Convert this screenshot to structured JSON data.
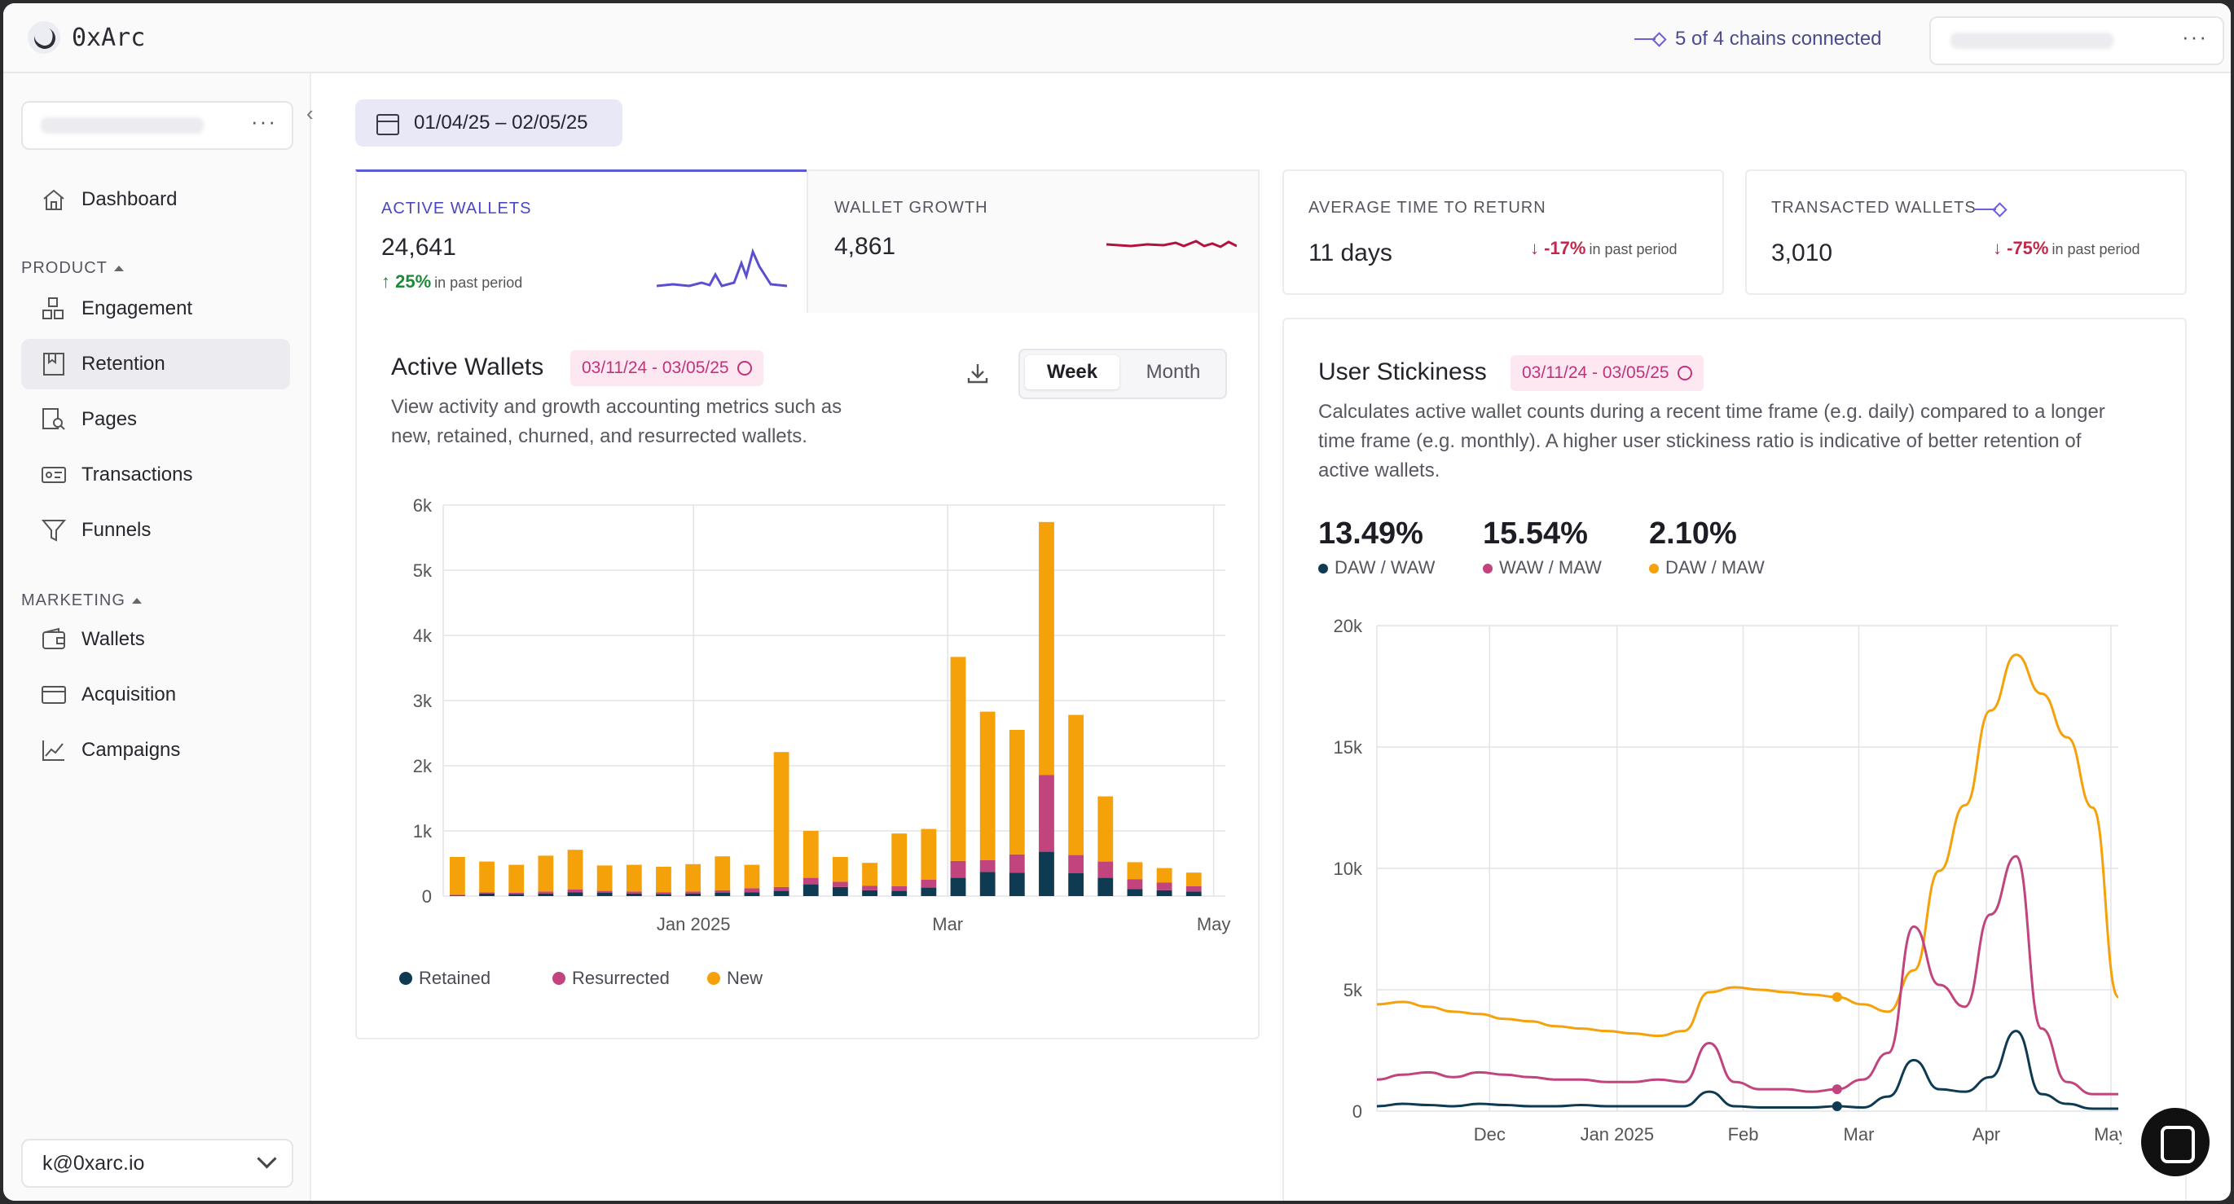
{
  "app": {
    "logo_text": "0xArc",
    "chains_status": "5 of 4 chains connected"
  },
  "sidebar": {
    "items": [
      {
        "label": "Dashboard",
        "icon": "home-icon"
      },
      {
        "label": "Engagement",
        "icon": "grid-icon"
      },
      {
        "label": "Retention",
        "icon": "bookmark-icon"
      },
      {
        "label": "Pages",
        "icon": "page-search-icon"
      },
      {
        "label": "Transactions",
        "icon": "id-card-icon"
      },
      {
        "label": "Funnels",
        "icon": "funnel-icon"
      },
      {
        "label": "Wallets",
        "icon": "wallet-icon"
      },
      {
        "label": "Acquisition",
        "icon": "card-icon"
      },
      {
        "label": "Campaigns",
        "icon": "line-chart-icon"
      }
    ],
    "sections": {
      "product": "PRODUCT",
      "marketing": "MARKETING"
    },
    "user_email": "k@0xarc.io"
  },
  "date_range": "01/04/25 – 02/05/25",
  "kpis": {
    "active_wallets": {
      "label": "ACTIVE WALLETS",
      "value": "24,641",
      "delta": "25%",
      "delta_suffix": "in past period"
    },
    "wallet_growth": {
      "label": "WALLET GROWTH",
      "value": "4,861"
    },
    "avg_time_to_return": {
      "label": "AVERAGE TIME TO RETURN",
      "value": "11 days",
      "delta": "-17%",
      "delta_suffix": "in past period"
    },
    "transacted_wallets": {
      "label": "TRANSACTED WALLETS",
      "value": "3,010",
      "delta": "-75%",
      "delta_suffix": "in past period"
    }
  },
  "active_wallets_card": {
    "title": "Active Wallets",
    "range": "03/11/24 - 03/05/25",
    "description_line1": "View activity and growth accounting metrics such as",
    "description_line2": "new, retained, churned, and resurrected wallets.",
    "toggle": {
      "week": "Week",
      "month": "Month",
      "selected": "Week"
    },
    "legend": {
      "retained": "Retained",
      "resurrected": "Resurrected",
      "new": "New"
    }
  },
  "stickiness_card": {
    "title": "User Stickiness",
    "range": "03/11/24 - 03/05/25",
    "description_line1": "Calculates active wallet counts during a recent time frame (e.g. daily) compared to a longer",
    "description_line2": "time frame (e.g. monthly). A higher user stickiness ratio is indicative of better retention of",
    "description_line3": "active wallets.",
    "stats": [
      {
        "value": "13.49%",
        "label": "DAW / WAW",
        "color": "#0e3a52"
      },
      {
        "value": "15.54%",
        "label": "WAW / MAW",
        "color": "#c1447e"
      },
      {
        "value": "2.10%",
        "label": "DAW / MAW",
        "color": "#f5a10a"
      }
    ]
  },
  "colors": {
    "retained": "#0e3a52",
    "resurrected": "#c1447e",
    "new": "#f5a10a",
    "accent": "#5b5bd6"
  },
  "chart_data": [
    {
      "type": "bar",
      "stacked": true,
      "title": "Active Wallets",
      "x_tick_labels": [
        "Jan 2025",
        "Mar",
        "May"
      ],
      "y_tick_labels": [
        "0",
        "1k",
        "2k",
        "3k",
        "4k",
        "5k",
        "6k"
      ],
      "ylim": [
        0,
        6000
      ],
      "series": [
        {
          "name": "Retained",
          "values": [
            10,
            40,
            30,
            40,
            60,
            50,
            40,
            30,
            40,
            50,
            60,
            80,
            180,
            140,
            90,
            80,
            130,
            280,
            370,
            360,
            680,
            350,
            280,
            110,
            90,
            70
          ]
        },
        {
          "name": "Resurrected",
          "values": [
            10,
            20,
            20,
            30,
            40,
            30,
            30,
            30,
            30,
            40,
            60,
            60,
            100,
            80,
            70,
            70,
            120,
            260,
            180,
            280,
            1180,
            280,
            250,
            150,
            120,
            80
          ]
        },
        {
          "name": "New",
          "values": [
            580,
            470,
            430,
            550,
            610,
            390,
            410,
            390,
            420,
            520,
            360,
            2070,
            720,
            380,
            350,
            810,
            780,
            3130,
            2280,
            1910,
            3880,
            2150,
            1000,
            260,
            220,
            210
          ]
        }
      ],
      "legend": [
        "Retained",
        "Resurrected",
        "New"
      ]
    },
    {
      "type": "line",
      "title": "User Stickiness",
      "x_tick_labels": [
        "Dec",
        "Jan 2025",
        "Feb",
        "Mar",
        "Apr",
        "May"
      ],
      "y_tick_labels": [
        "0",
        "5k",
        "10k",
        "15k",
        "20k"
      ],
      "ylim": [
        0,
        20000
      ],
      "series": [
        {
          "name": "DAW / MAW",
          "values": [
            4400,
            4500,
            4300,
            4100,
            4000,
            3800,
            3700,
            3500,
            3400,
            3300,
            3200,
            3100,
            3300,
            4900,
            5100,
            5000,
            4900,
            4800,
            4700,
            4400,
            4100,
            5800,
            9900,
            12600,
            16500,
            18800,
            17200,
            15400,
            12500,
            4700
          ]
        },
        {
          "name": "WAW / MAW",
          "values": [
            1300,
            1500,
            1600,
            1400,
            1600,
            1500,
            1400,
            1300,
            1300,
            1200,
            1200,
            1300,
            1200,
            2800,
            1200,
            900,
            900,
            800,
            900,
            1300,
            2400,
            7600,
            5200,
            4300,
            8100,
            10500,
            3400,
            1200,
            700,
            700
          ]
        },
        {
          "name": "DAW / WAW",
          "values": [
            200,
            300,
            250,
            200,
            300,
            250,
            200,
            200,
            250,
            200,
            200,
            200,
            200,
            800,
            200,
            150,
            150,
            150,
            200,
            150,
            600,
            2100,
            900,
            800,
            1400,
            3300,
            700,
            300,
            100,
            100
          ]
        }
      ]
    }
  ]
}
